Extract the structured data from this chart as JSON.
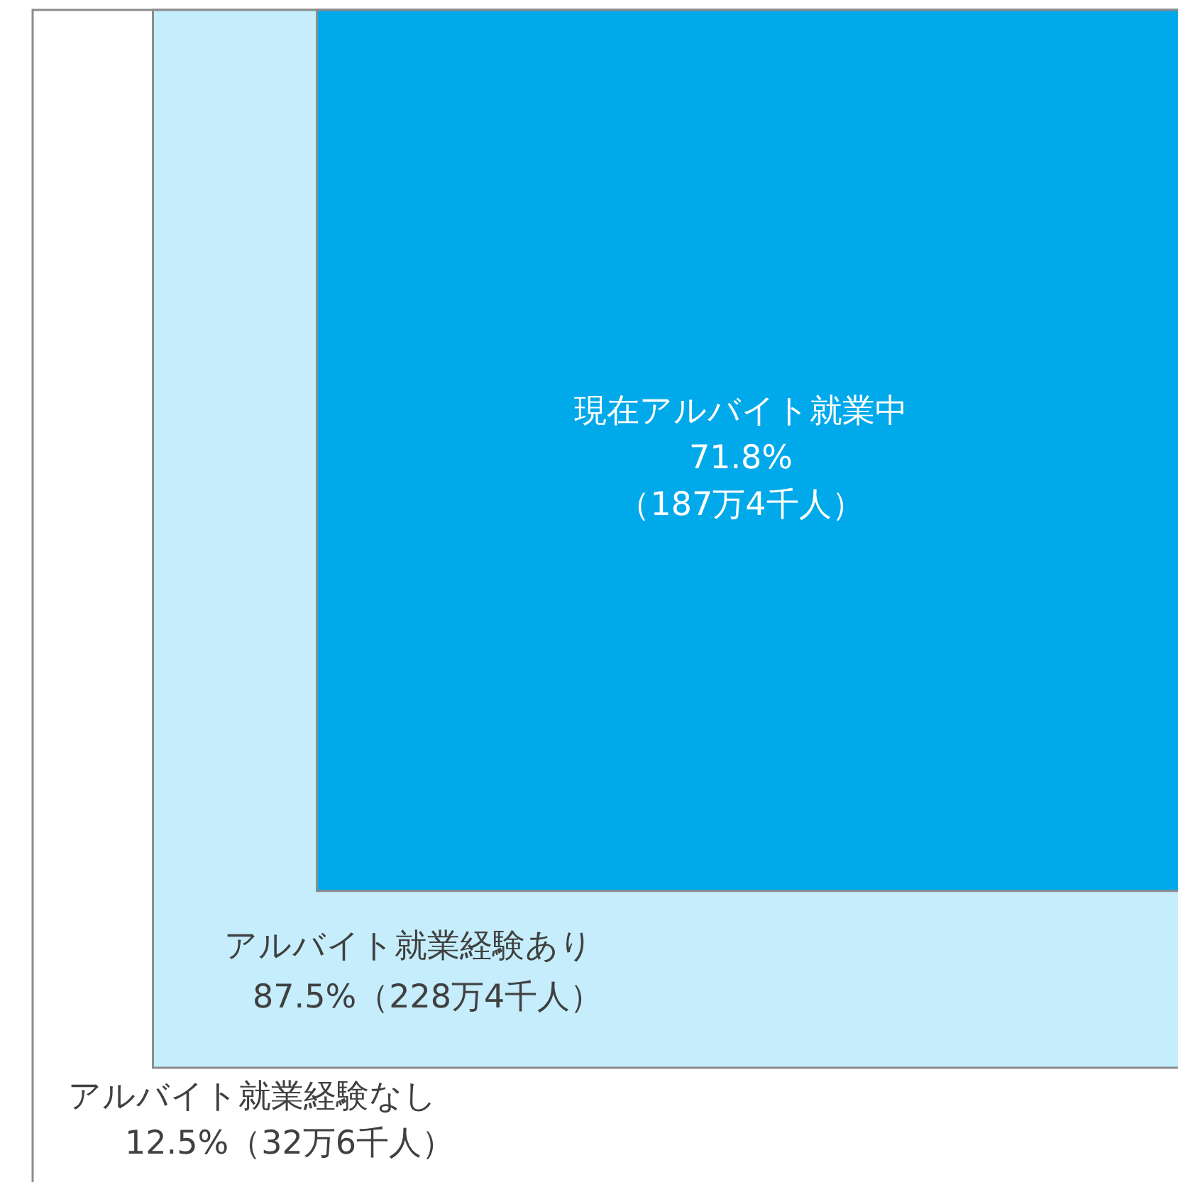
{
  "chart_data": {
    "type": "other",
    "categories": [
      "アルバイト就業経験なし",
      "アルバイト就業経験あり",
      "現在アルバイト就業中"
    ],
    "values": [
      12.5,
      87.5,
      71.8
    ],
    "value_labels": [
      "12.5%（32万6千人）",
      "87.5%（228万4千人）",
      "71.8%\n（187万4千人）"
    ],
    "colors": [
      "#ffffff",
      "#c5edfb",
      "#00a9e9"
    ]
  }
}
